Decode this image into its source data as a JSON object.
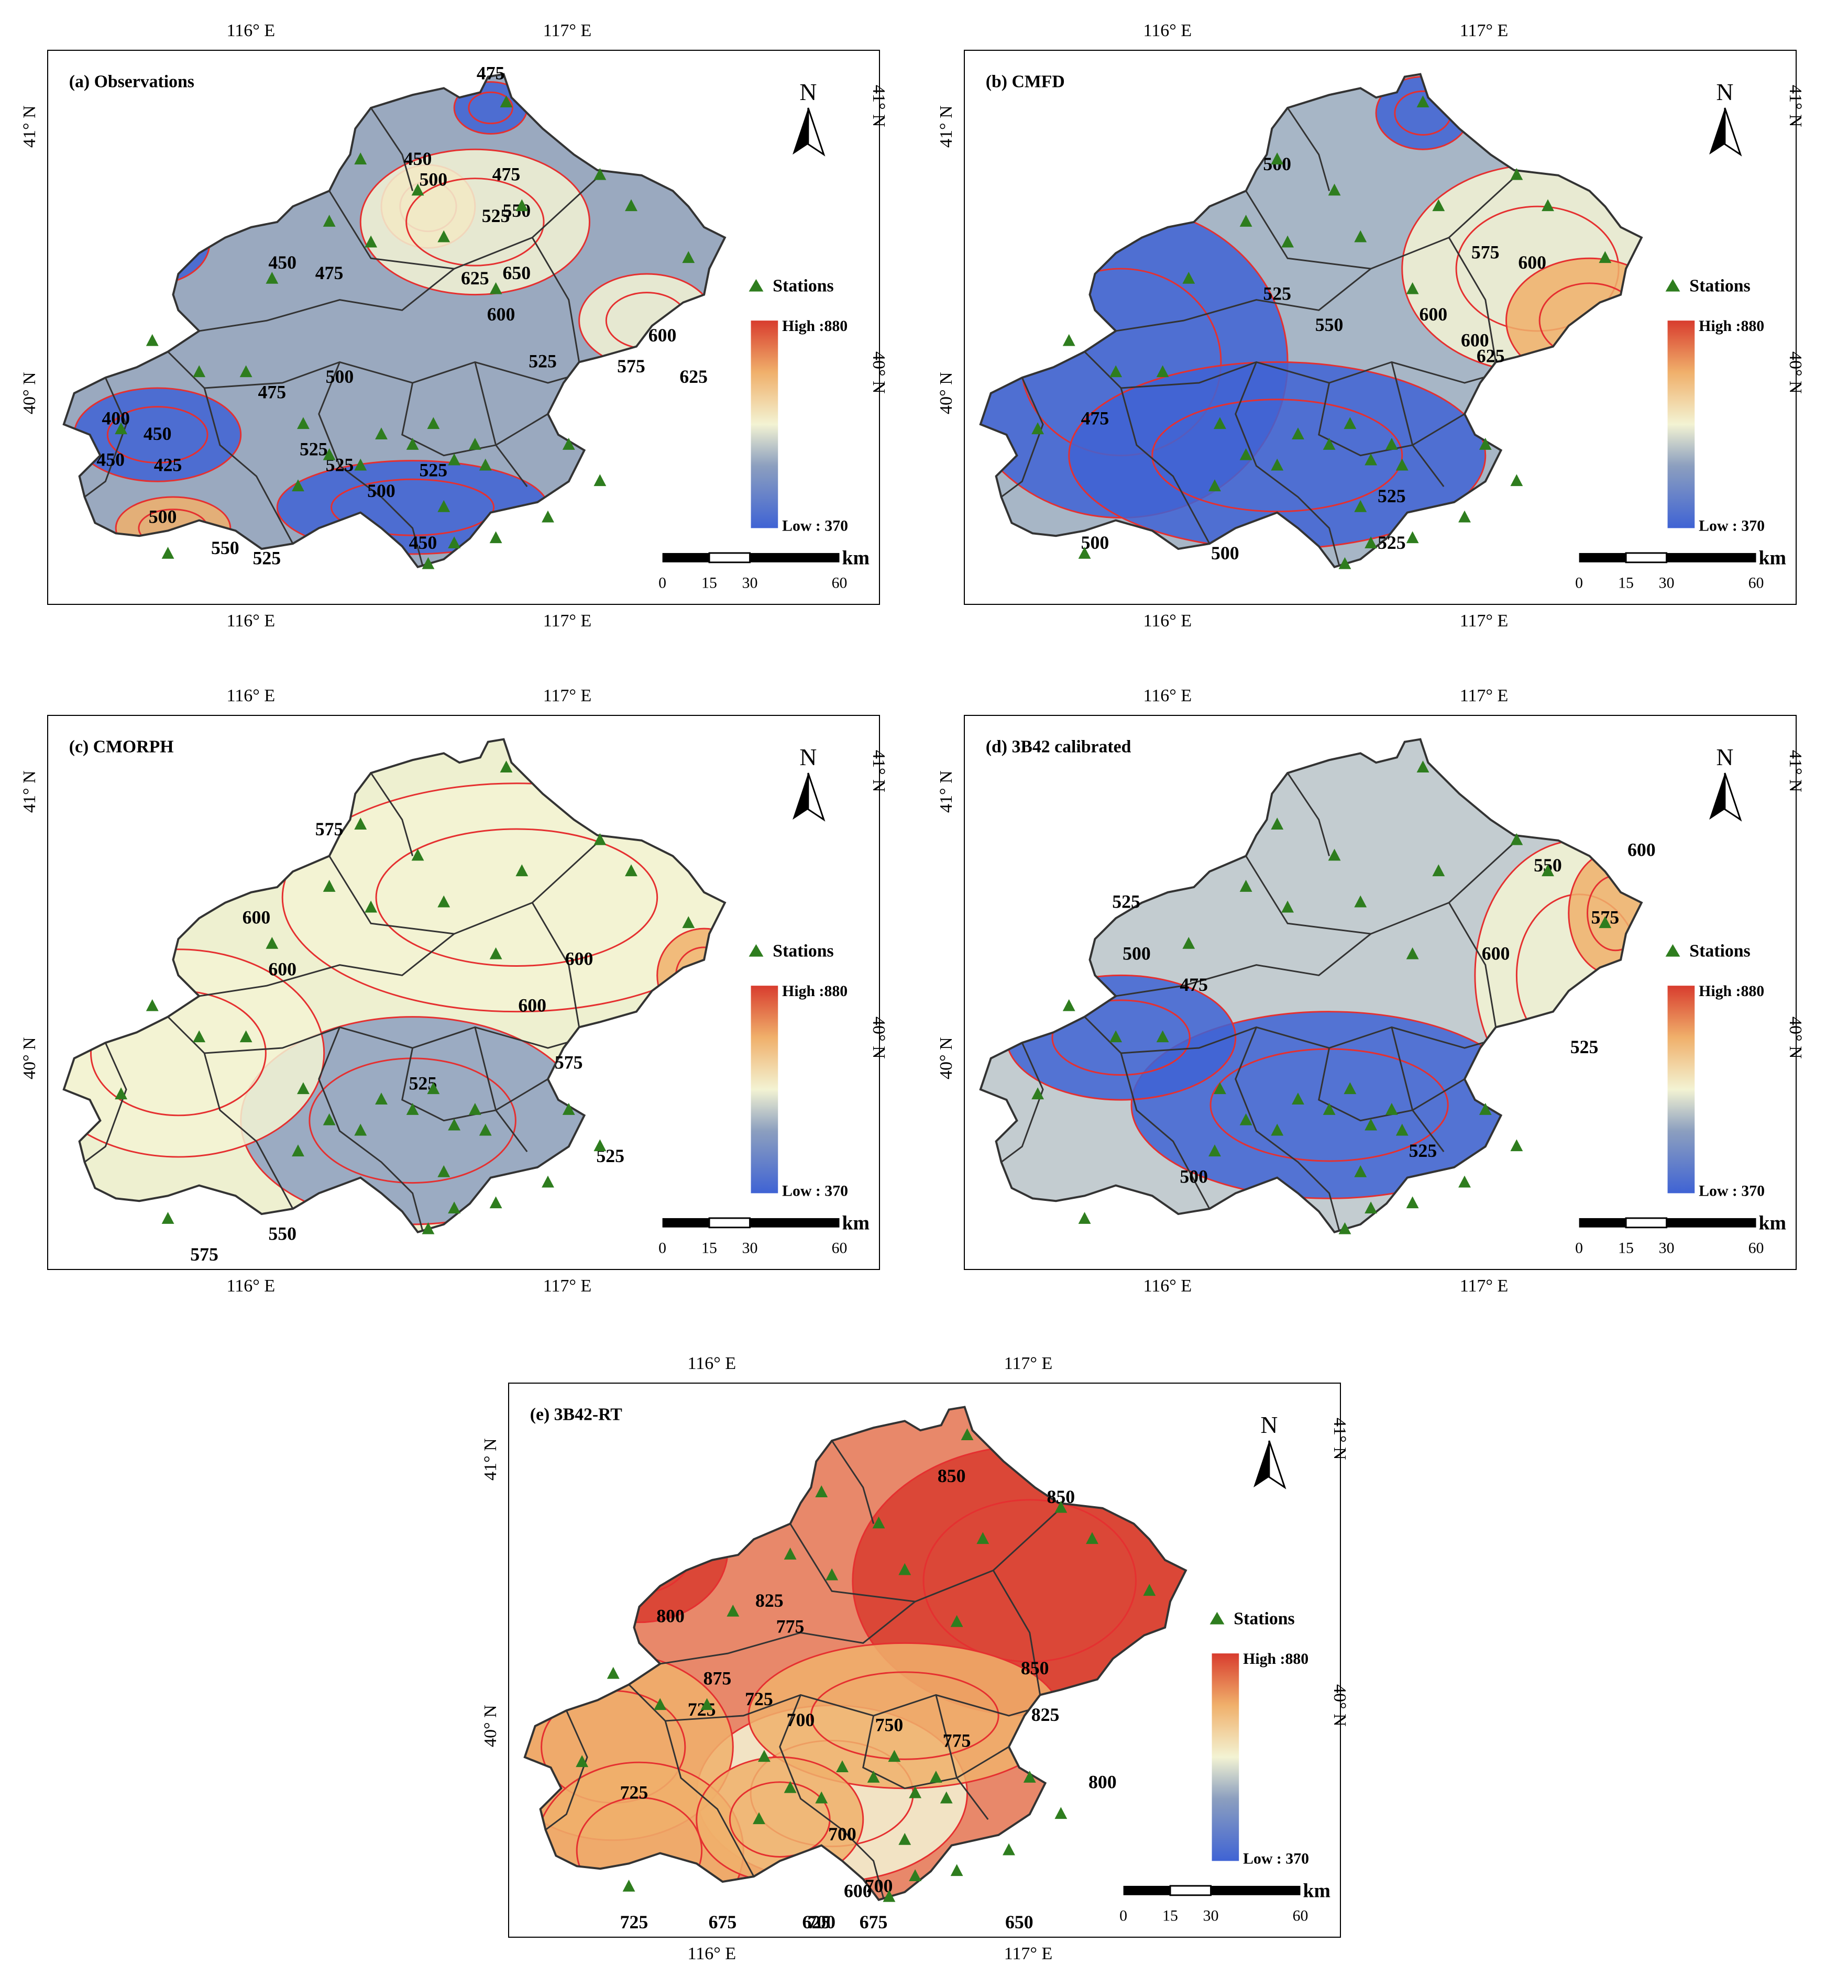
{
  "colors": {
    "low": "#3f63d4",
    "mid_low": "#8c9fbf",
    "mid": "#f3f3d3",
    "mid_high": "#f0b06b",
    "high": "#d83c2e",
    "contour": "#e53030",
    "boundary": "#333333",
    "station": "#2e7d1e"
  },
  "coords": {
    "lon_top": [
      "116° E",
      "117° E"
    ],
    "lon_bottom": [
      "116° E",
      "117° E"
    ],
    "lat_left": [
      "41° N",
      "40° N"
    ],
    "lat_right": [
      "41° N",
      "40° N"
    ]
  },
  "legend": {
    "stations": "Stations",
    "high": "High :880",
    "low": "Low : 370"
  },
  "scalebar": {
    "unit": "km",
    "ticks": [
      "0",
      "15",
      "30",
      "60"
    ]
  },
  "north": "N",
  "panels": [
    {
      "id": "a",
      "title": "(a) Observations",
      "mean_fill": "#9aa9bf",
      "contour_labels": [
        "475",
        "450",
        "500",
        "475",
        "525",
        "550",
        "450",
        "475",
        "625",
        "650",
        "600",
        "525",
        "475",
        "500",
        "575",
        "600",
        "625",
        "400",
        "450",
        "425",
        "525",
        "525",
        "525",
        "500",
        "450",
        "500",
        "550",
        "525",
        "450"
      ]
    },
    {
      "id": "b",
      "title": "(b) CMFD",
      "mean_fill": "#a7b6c6",
      "contour_labels": [
        "500",
        "575",
        "600",
        "525",
        "550",
        "600",
        "600",
        "625",
        "475",
        "525",
        "500",
        "500",
        "525"
      ]
    },
    {
      "id": "c",
      "title": "(c) CMORPH",
      "mean_fill": "#eef0d0",
      "contour_labels": [
        "575",
        "600",
        "600",
        "600",
        "600",
        "575",
        "525",
        "525",
        "550",
        "575"
      ]
    },
    {
      "id": "d",
      "title": "(d) 3B42 calibrated",
      "mean_fill": "#c3ccd0",
      "contour_labels": [
        "600",
        "575",
        "550",
        "525",
        "500",
        "600",
        "475",
        "525",
        "525",
        "500"
      ]
    },
    {
      "id": "e",
      "title": "(e) 3B42-RT",
      "mean_fill": "#e8886a",
      "contour_labels": [
        "850",
        "850",
        "825",
        "775",
        "800",
        "875",
        "725",
        "725",
        "700",
        "750",
        "775",
        "850",
        "825",
        "800",
        "725",
        "700",
        "600",
        "700",
        "650",
        "675",
        "625",
        "675",
        "725",
        "700"
      ]
    }
  ]
}
